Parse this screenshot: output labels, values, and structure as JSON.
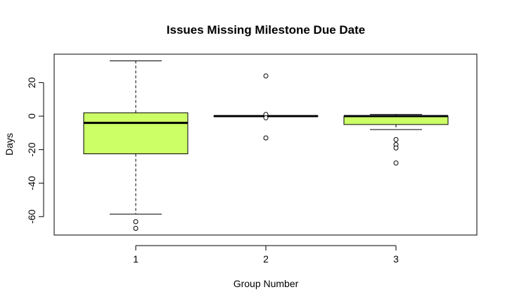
{
  "chart_data": {
    "type": "boxplot",
    "title": "Issues Missing Milestone Due Date",
    "xlabel": "Group Number",
    "ylabel": "Days",
    "ylim": [
      -71,
      37
    ],
    "yticks": [
      -60,
      -40,
      -20,
      0,
      20
    ],
    "grid": false,
    "box_color": "#ccff66",
    "categories": [
      "1",
      "2",
      "3"
    ],
    "boxes": [
      {
        "category": "1",
        "whisker_low": -58.5,
        "q1": -22.5,
        "median": -4,
        "q3": 2,
        "whisker_high": 33,
        "outliers": [
          -63,
          -67
        ]
      },
      {
        "category": "2",
        "whisker_low": 0,
        "q1": 0,
        "median": 0,
        "q3": 0,
        "whisker_high": 0,
        "outliers": [
          24,
          1,
          -1,
          -13
        ]
      },
      {
        "category": "3",
        "whisker_low": -8,
        "q1": -5,
        "median": 0,
        "q3": 0,
        "whisker_high": 1,
        "outliers": [
          -14,
          -17,
          -19,
          -28
        ]
      }
    ]
  }
}
